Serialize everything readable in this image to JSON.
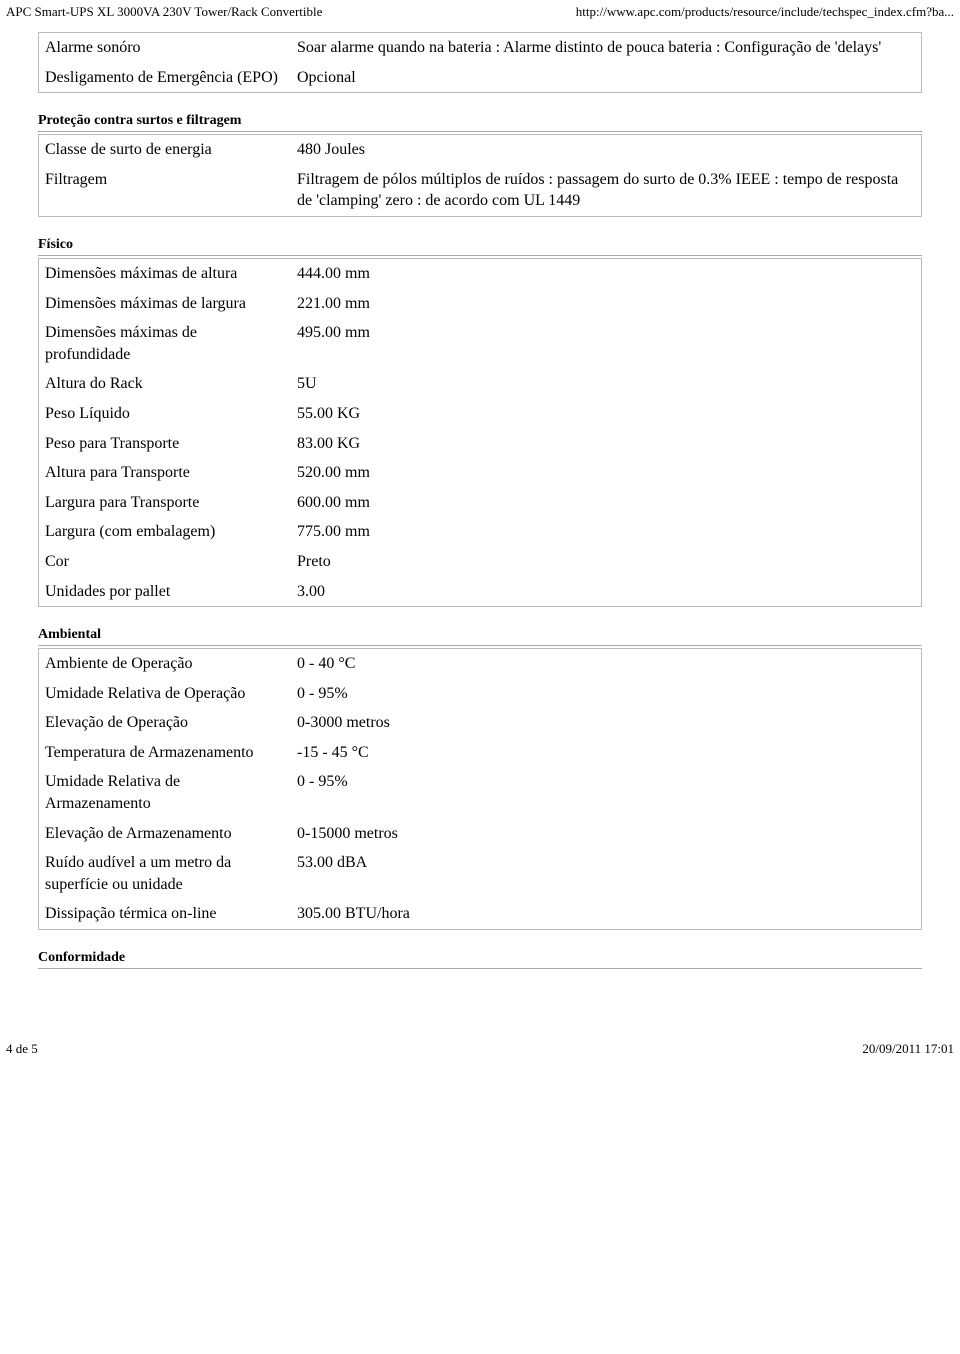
{
  "header": {
    "left": "APC Smart-UPS XL 3000VA 230V Tower/Rack Convertible",
    "right": "http://www.apc.com/products/resource/include/techspec_index.cfm?ba..."
  },
  "sections": [
    {
      "heading": null,
      "rows": [
        {
          "label": "Alarme sonóro",
          "value": "Soar alarme quando na bateria : Alarme distinto de pouca bateria : Configuração de 'delays'"
        },
        {
          "label": "Desligamento de Emergência (EPO)",
          "value": "Opcional"
        }
      ]
    },
    {
      "heading": "Proteção contra surtos e filtragem",
      "rows": [
        {
          "label": "Classe de surto de energia",
          "value": "480 Joules"
        },
        {
          "label": "Filtragem",
          "value": "Filtragem de pólos múltiplos de ruídos : passagem do surto de 0.3% IEEE : tempo de resposta de 'clamping' zero : de acordo com UL 1449"
        }
      ]
    },
    {
      "heading": "Físico",
      "rows": [
        {
          "label": "Dimensões máximas de altura",
          "value": "444.00 mm"
        },
        {
          "label": "Dimensões máximas de largura",
          "value": "221.00 mm"
        },
        {
          "label": "Dimensões máximas de profundidade",
          "value": "495.00 mm"
        },
        {
          "label": "Altura do Rack",
          "value": "5U"
        },
        {
          "label": "Peso Líquido",
          "value": "55.00 KG"
        },
        {
          "label": "Peso para Transporte",
          "value": "83.00 KG"
        },
        {
          "label": "Altura para Transporte",
          "value": "520.00 mm"
        },
        {
          "label": "Largura para Transporte",
          "value": "600.00 mm"
        },
        {
          "label": "Largura (com embalagem)",
          "value": "775.00 mm"
        },
        {
          "label": "Cor",
          "value": "Preto"
        },
        {
          "label": "Unidades por pallet",
          "value": "3.00"
        }
      ]
    },
    {
      "heading": "Ambiental",
      "rows": [
        {
          "label": "Ambiente de Operação",
          "value": "0 - 40 °C"
        },
        {
          "label": "Umidade Relativa de Operação",
          "value": "0 - 95%"
        },
        {
          "label": "Elevação de Operação",
          "value": "0-3000 metros"
        },
        {
          "label": "Temperatura de Armazenamento",
          "value": "-15 - 45 °C"
        },
        {
          "label": "Umidade Relativa de Armazenamento",
          "value": "0 - 95%"
        },
        {
          "label": "Elevação de Armazenamento",
          "value": "0-15000 metros"
        },
        {
          "label": "Ruído audível a um metro da superfície ou unidade",
          "value": "53.00 dBA"
        },
        {
          "label": "Dissipação térmica on-line",
          "value": "305.00 BTU/hora"
        }
      ]
    }
  ],
  "trailingHeading": "Conformidade",
  "footer": {
    "left": "4 de 5",
    "right": "20/09/2011 17:01"
  }
}
